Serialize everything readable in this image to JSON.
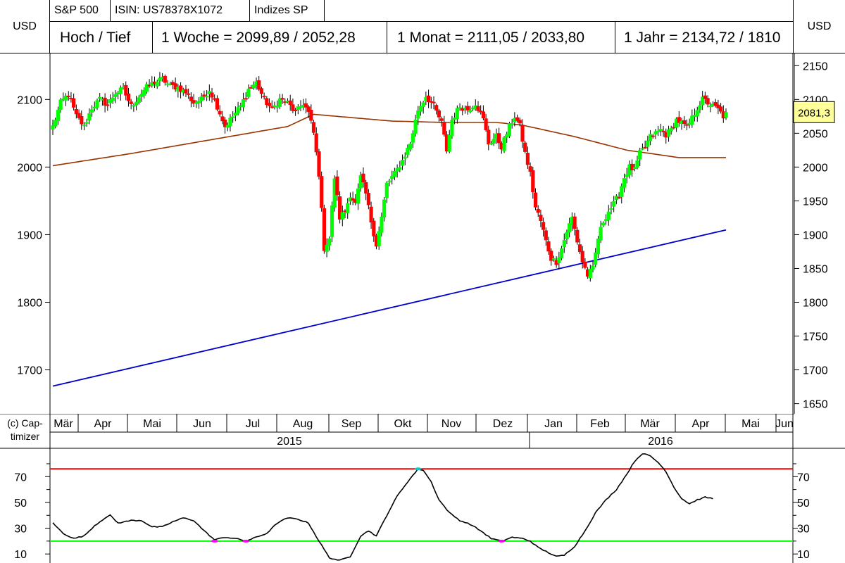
{
  "header": {
    "row1": [
      {
        "label": "S&P 500"
      },
      {
        "label": "ISIN: US78378X1072"
      },
      {
        "label": "Indizes SP"
      }
    ],
    "currency_left": "USD",
    "currency_right": "USD",
    "row2": [
      {
        "label": "Hoch / Tief"
      },
      {
        "label": "1 Woche = 2099,89 / 2052,28"
      },
      {
        "label": "1 Monat = 2111,05 / 2033,80"
      },
      {
        "label": "1 Jahr = 2134,72 / 1810"
      }
    ]
  },
  "copyright": "(c) Cap-\ntimizer",
  "colors": {
    "up_candle": "#00ff00",
    "down_candle": "#ff0000",
    "wick": "#000000",
    "ma_short": "#993300",
    "ma_long": "#0000cc",
    "osc_upper": "#ff0000",
    "osc_lower": "#00ff00",
    "price_label_bg": "#ffff99"
  },
  "chart_data": [
    {
      "type": "candlestick",
      "y_ticks": [
        1650,
        1700,
        1750,
        1800,
        1850,
        1900,
        1950,
        2000,
        2050,
        2100,
        2150
      ],
      "y_left_labels": [
        1700,
        1800,
        1900,
        2000,
        2100
      ],
      "ylim": [
        1635,
        2168
      ],
      "month_labels": [
        "Mär",
        "Apr",
        "Mai",
        "Jun",
        "Jul",
        "Aug",
        "Sep",
        "Okt",
        "Nov",
        "Dez",
        "Jan",
        "Feb",
        "Mär",
        "Apr",
        "Mai",
        "Jun"
      ],
      "year_labels": [
        "2015",
        "2016"
      ],
      "last_price": "2081,3",
      "close_anchors": [
        {
          "x": 0,
          "c": 2060
        },
        {
          "x": 3,
          "c": 2095
        },
        {
          "x": 6,
          "c": 2108
        },
        {
          "x": 9,
          "c": 2075
        },
        {
          "x": 12,
          "c": 2060
        },
        {
          "x": 15,
          "c": 2088
        },
        {
          "x": 18,
          "c": 2100
        },
        {
          "x": 21,
          "c": 2092
        },
        {
          "x": 24,
          "c": 2110
        },
        {
          "x": 27,
          "c": 2115
        },
        {
          "x": 30,
          "c": 2090
        },
        {
          "x": 33,
          "c": 2105
        },
        {
          "x": 36,
          "c": 2118
        },
        {
          "x": 39,
          "c": 2125
        },
        {
          "x": 42,
          "c": 2130
        },
        {
          "x": 45,
          "c": 2120
        },
        {
          "x": 48,
          "c": 2118
        },
        {
          "x": 51,
          "c": 2110
        },
        {
          "x": 54,
          "c": 2095
        },
        {
          "x": 57,
          "c": 2100
        },
        {
          "x": 60,
          "c": 2115
        },
        {
          "x": 63,
          "c": 2090
        },
        {
          "x": 66,
          "c": 2060
        },
        {
          "x": 69,
          "c": 2075
        },
        {
          "x": 72,
          "c": 2090
        },
        {
          "x": 75,
          "c": 2115
        },
        {
          "x": 78,
          "c": 2125
        },
        {
          "x": 81,
          "c": 2100
        },
        {
          "x": 84,
          "c": 2085
        },
        {
          "x": 87,
          "c": 2100
        },
        {
          "x": 90,
          "c": 2095
        },
        {
          "x": 93,
          "c": 2080
        },
        {
          "x": 96,
          "c": 2095
        },
        {
          "x": 98,
          "c": 2080
        },
        {
          "x": 100,
          "c": 2050
        },
        {
          "x": 102,
          "c": 1990
        },
        {
          "x": 104,
          "c": 1880
        },
        {
          "x": 106,
          "c": 1895
        },
        {
          "x": 108,
          "c": 1985
        },
        {
          "x": 110,
          "c": 1925
        },
        {
          "x": 112,
          "c": 1935
        },
        {
          "x": 114,
          "c": 1960
        },
        {
          "x": 116,
          "c": 1945
        },
        {
          "x": 118,
          "c": 1985
        },
        {
          "x": 120,
          "c": 1960
        },
        {
          "x": 122,
          "c": 1920
        },
        {
          "x": 124,
          "c": 1885
        },
        {
          "x": 126,
          "c": 1925
        },
        {
          "x": 128,
          "c": 1975
        },
        {
          "x": 131,
          "c": 1990
        },
        {
          "x": 134,
          "c": 2010
        },
        {
          "x": 137,
          "c": 2035
        },
        {
          "x": 140,
          "c": 2085
        },
        {
          "x": 143,
          "c": 2105
        },
        {
          "x": 146,
          "c": 2090
        },
        {
          "x": 149,
          "c": 2065
        },
        {
          "x": 151,
          "c": 2025
        },
        {
          "x": 153,
          "c": 2070
        },
        {
          "x": 156,
          "c": 2090
        },
        {
          "x": 159,
          "c": 2085
        },
        {
          "x": 162,
          "c": 2095
        },
        {
          "x": 165,
          "c": 2070
        },
        {
          "x": 167,
          "c": 2035
        },
        {
          "x": 170,
          "c": 2045
        },
        {
          "x": 172,
          "c": 2030
        },
        {
          "x": 175,
          "c": 2060
        },
        {
          "x": 177,
          "c": 2075
        },
        {
          "x": 179,
          "c": 2060
        },
        {
          "x": 181,
          "c": 2020
        },
        {
          "x": 183,
          "c": 1990
        },
        {
          "x": 185,
          "c": 1940
        },
        {
          "x": 187,
          "c": 1920
        },
        {
          "x": 189,
          "c": 1890
        },
        {
          "x": 191,
          "c": 1865
        },
        {
          "x": 193,
          "c": 1860
        },
        {
          "x": 195,
          "c": 1880
        },
        {
          "x": 197,
          "c": 1905
        },
        {
          "x": 199,
          "c": 1925
        },
        {
          "x": 201,
          "c": 1890
        },
        {
          "x": 203,
          "c": 1860
        },
        {
          "x": 205,
          "c": 1840
        },
        {
          "x": 207,
          "c": 1850
        },
        {
          "x": 209,
          "c": 1895
        },
        {
          "x": 211,
          "c": 1920
        },
        {
          "x": 213,
          "c": 1935
        },
        {
          "x": 215,
          "c": 1945
        },
        {
          "x": 217,
          "c": 1960
        },
        {
          "x": 219,
          "c": 1985
        },
        {
          "x": 221,
          "c": 2000
        },
        {
          "x": 223,
          "c": 1995
        },
        {
          "x": 225,
          "c": 2020
        },
        {
          "x": 227,
          "c": 2030
        },
        {
          "x": 229,
          "c": 2045
        },
        {
          "x": 231,
          "c": 2050
        },
        {
          "x": 233,
          "c": 2055
        },
        {
          "x": 235,
          "c": 2048
        },
        {
          "x": 237,
          "c": 2055
        },
        {
          "x": 239,
          "c": 2070
        },
        {
          "x": 241,
          "c": 2065
        },
        {
          "x": 243,
          "c": 2058
        },
        {
          "x": 245,
          "c": 2072
        },
        {
          "x": 247,
          "c": 2088
        },
        {
          "x": 249,
          "c": 2100
        },
        {
          "x": 251,
          "c": 2095
        },
        {
          "x": 253,
          "c": 2090
        },
        {
          "x": 255,
          "c": 2085
        },
        {
          "x": 257,
          "c": 2075
        },
        {
          "x": 258,
          "c": 2081.3
        }
      ],
      "n_candles": 259,
      "ma_short_anchors": [
        {
          "x": 0,
          "v": 2002
        },
        {
          "x": 30,
          "v": 2020
        },
        {
          "x": 60,
          "v": 2040
        },
        {
          "x": 90,
          "v": 2060
        },
        {
          "x": 100,
          "v": 2078
        },
        {
          "x": 130,
          "v": 2068
        },
        {
          "x": 150,
          "v": 2066
        },
        {
          "x": 170,
          "v": 2066
        },
        {
          "x": 180,
          "v": 2062
        },
        {
          "x": 200,
          "v": 2045
        },
        {
          "x": 220,
          "v": 2025
        },
        {
          "x": 240,
          "v": 2014
        },
        {
          "x": 258,
          "v": 2014
        }
      ],
      "ma_long": [
        {
          "x": 0,
          "v": 1676
        },
        {
          "x": 258,
          "v": 1907
        }
      ]
    },
    {
      "type": "line",
      "y_ticks": [
        10,
        30,
        50,
        70
      ],
      "ylim": [
        3,
        92
      ],
      "upper_level": 76,
      "lower_level": 20,
      "anchors": [
        {
          "x": 0,
          "v": 34
        },
        {
          "x": 4,
          "v": 26
        },
        {
          "x": 8,
          "v": 22
        },
        {
          "x": 12,
          "v": 24
        },
        {
          "x": 16,
          "v": 32
        },
        {
          "x": 20,
          "v": 38
        },
        {
          "x": 22,
          "v": 40
        },
        {
          "x": 25,
          "v": 34
        },
        {
          "x": 30,
          "v": 36
        },
        {
          "x": 34,
          "v": 36
        },
        {
          "x": 38,
          "v": 31
        },
        {
          "x": 42,
          "v": 31
        },
        {
          "x": 46,
          "v": 35
        },
        {
          "x": 50,
          "v": 38
        },
        {
          "x": 54,
          "v": 36
        },
        {
          "x": 58,
          "v": 28
        },
        {
          "x": 62,
          "v": 21
        },
        {
          "x": 66,
          "v": 23
        },
        {
          "x": 70,
          "v": 22
        },
        {
          "x": 74,
          "v": 20
        },
        {
          "x": 78,
          "v": 23
        },
        {
          "x": 82,
          "v": 26
        },
        {
          "x": 86,
          "v": 34
        },
        {
          "x": 90,
          "v": 38
        },
        {
          "x": 94,
          "v": 37
        },
        {
          "x": 98,
          "v": 34
        },
        {
          "x": 102,
          "v": 20
        },
        {
          "x": 106,
          "v": 7
        },
        {
          "x": 110,
          "v": 5
        },
        {
          "x": 114,
          "v": 8
        },
        {
          "x": 116,
          "v": 16
        },
        {
          "x": 118,
          "v": 24
        },
        {
          "x": 121,
          "v": 28
        },
        {
          "x": 124,
          "v": 24
        },
        {
          "x": 128,
          "v": 40
        },
        {
          "x": 132,
          "v": 55
        },
        {
          "x": 136,
          "v": 66
        },
        {
          "x": 140,
          "v": 76
        },
        {
          "x": 142,
          "v": 75
        },
        {
          "x": 145,
          "v": 66
        },
        {
          "x": 148,
          "v": 52
        },
        {
          "x": 152,
          "v": 42
        },
        {
          "x": 156,
          "v": 36
        },
        {
          "x": 160,
          "v": 33
        },
        {
          "x": 164,
          "v": 28
        },
        {
          "x": 168,
          "v": 22
        },
        {
          "x": 172,
          "v": 20
        },
        {
          "x": 176,
          "v": 23
        },
        {
          "x": 180,
          "v": 22
        },
        {
          "x": 183,
          "v": 20
        },
        {
          "x": 186,
          "v": 15
        },
        {
          "x": 190,
          "v": 11
        },
        {
          "x": 193,
          "v": 8
        },
        {
          "x": 196,
          "v": 9
        },
        {
          "x": 200,
          "v": 16
        },
        {
          "x": 204,
          "v": 28
        },
        {
          "x": 208,
          "v": 42
        },
        {
          "x": 212,
          "v": 52
        },
        {
          "x": 216,
          "v": 60
        },
        {
          "x": 220,
          "v": 72
        },
        {
          "x": 223,
          "v": 82
        },
        {
          "x": 226,
          "v": 88
        },
        {
          "x": 229,
          "v": 86
        },
        {
          "x": 232,
          "v": 81
        },
        {
          "x": 235,
          "v": 74
        },
        {
          "x": 238,
          "v": 62
        },
        {
          "x": 241,
          "v": 53
        },
        {
          "x": 244,
          "v": 49
        },
        {
          "x": 247,
          "v": 52
        },
        {
          "x": 250,
          "v": 54
        },
        {
          "x": 253,
          "v": 53
        }
      ],
      "markers": [
        {
          "x": 62,
          "v": 20,
          "color": "#ff00ff"
        },
        {
          "x": 74,
          "v": 20,
          "color": "#ff00ff"
        },
        {
          "x": 140,
          "v": 76,
          "color": "#00cccc"
        },
        {
          "x": 172,
          "v": 20,
          "color": "#ff00ff"
        }
      ]
    }
  ]
}
